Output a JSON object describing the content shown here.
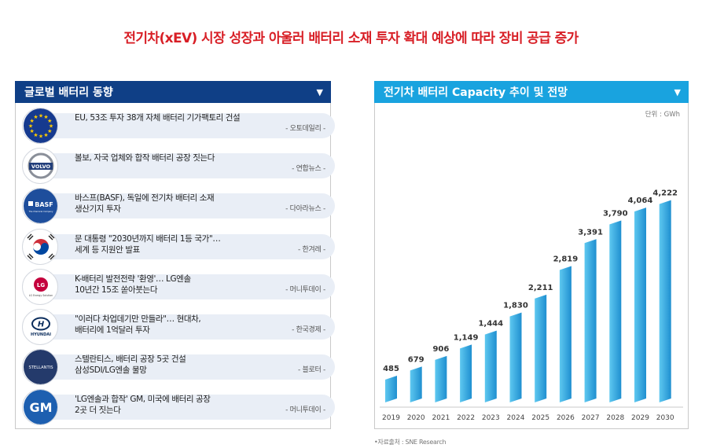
{
  "headline": "전기차(xEV) 시장 성장과 아울러 배터리 소재 투자 확대 예상에 따라 장비 공급 증가",
  "left_panel": {
    "title": "글로벌 배터리 동향",
    "caret": "▼",
    "news": [
      {
        "logo": "eu-flag-icon",
        "title": "EU, 53조 투자 38개 자체 배터리 기가팩토리 건설",
        "source": "- 오토데일리 -"
      },
      {
        "logo": "volvo-logo",
        "logo_text": "VOLVO",
        "title": "볼보, 자국 업체와 합작 배터리 공장 짓는다",
        "source": "- 연합뉴스 -"
      },
      {
        "logo": "basf-logo",
        "logo_text": "BASF",
        "logo_subtext": "The Chemical Company",
        "title": "바스프(BASF), 독일에 전기차 배터리 소재\n생산기지 투자",
        "source": "- 다아라뉴스 -"
      },
      {
        "logo": "korea-flag-icon",
        "title": "문 대통령 \"2030년까지 배터리 1등 국가\"…\n세계 등 지원안 발표",
        "source": "- 한겨레 -"
      },
      {
        "logo": "lg-energy-logo",
        "logo_text": "LG",
        "logo_subtext": "LG Energy Solution",
        "title": "K-배터리 발전전략 '환영'… LG엔솔\n10년간 15조 쏟아붓는다",
        "source": "- 머니투데이 -"
      },
      {
        "logo": "hyundai-logo",
        "logo_text": "HYUNDAI",
        "title": "\"이러다 차업데기만 만들라\"… 현대차,\n배터리에 1억달러 투자",
        "source": "- 한국경제 -"
      },
      {
        "logo": "stellantis-logo",
        "logo_text": "STELLANTIS",
        "title": "스텔란티스, 배터리 공장 5곳 건설\n삼성SDI/LG엔솔 물망",
        "source": "- 블로터 -"
      },
      {
        "logo": "gm-logo",
        "logo_text": "GM",
        "title": "'LG엔솔과 합작' GM, 미국에 배터리 공장\n2곳 더 짓는다",
        "source": "- 머니투데이 -"
      }
    ]
  },
  "right_panel": {
    "title": "전기차 배터리 Capacity 추이 및 전망",
    "caret": "▼",
    "unit": "단위 : GWh",
    "source_note": "•자료출처 : SNE Research"
  },
  "colors": {
    "headline": "#d81f26",
    "left_bar": "#0f3f86",
    "right_bar": "#19a3df",
    "bar_light": "#5ec8f0",
    "bar_dark": "#1f8fd0",
    "pill": "#e9eef6"
  },
  "chart_data": {
    "type": "bar",
    "title": "전기차 배터리 Capacity 추이 및 전망",
    "unit": "단위 : GWh",
    "categories": [
      "2019",
      "2020",
      "2021",
      "2022",
      "2023",
      "2024",
      "2025",
      "2026",
      "2027",
      "2028",
      "2029",
      "2030"
    ],
    "values": [
      485,
      679,
      906,
      1149,
      1444,
      1830,
      2211,
      2819,
      3391,
      3790,
      4064,
      4222
    ],
    "value_labels": [
      "485",
      "679",
      "906",
      "1,149",
      "1,444",
      "1,830",
      "2,211",
      "2,819",
      "3,391",
      "3,790",
      "4,064",
      "4,222"
    ],
    "ylim": [
      0,
      4500
    ],
    "grid": false,
    "legend": "none"
  }
}
